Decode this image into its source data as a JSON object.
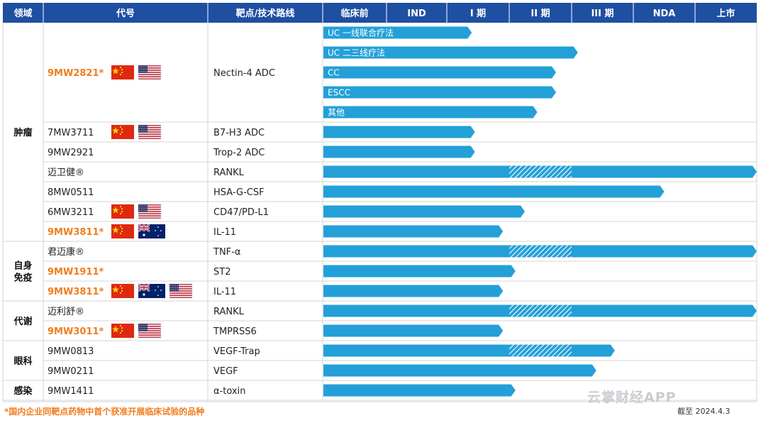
{
  "header": {
    "area": "领域",
    "code": "代号",
    "target": "靶点/技术路线",
    "phases": [
      "临床前",
      "IND",
      "I 期",
      "II 期",
      "III 期",
      "NDA",
      "上市"
    ]
  },
  "areas": [
    {
      "label": "肿瘤",
      "lines": [
        "肿瘤"
      ]
    },
    {
      "label": "自身免疫",
      "lines": [
        "自身",
        "免疫"
      ]
    },
    {
      "label": "代谢",
      "lines": [
        "代谢"
      ]
    },
    {
      "label": "眼科",
      "lines": [
        "眼科"
      ]
    },
    {
      "label": "感染",
      "lines": [
        "感染"
      ]
    }
  ],
  "chart_data": {
    "type": "bar",
    "stage_scale": [
      "临床前",
      "IND",
      "I 期",
      "II 期",
      "III 期",
      "NDA",
      "上市"
    ],
    "note": "bar ends are expressed in stage columns (0 = start of 临床前, 7 = end of 上市); hatch ranges mark the striped segment",
    "rows": [
      {
        "area": "肿瘤",
        "code": "9MW2821*",
        "highlight": true,
        "flags": [
          "cn",
          "us"
        ],
        "target": "Nectin-4 ADC",
        "bars": [
          {
            "label": "UC 一线联合疗法",
            "end": 2.4
          },
          {
            "label": "UC 二三线疗法",
            "end": 4.1
          },
          {
            "label": "CC",
            "end": 3.75
          },
          {
            "label": "ESCC",
            "end": 3.75
          },
          {
            "label": "其他",
            "end": 3.45
          }
        ]
      },
      {
        "area": "肿瘤",
        "code": "7MW3711",
        "highlight": false,
        "flags": [
          "cn",
          "us"
        ],
        "target": "B7-H3 ADC",
        "bars": [
          {
            "label": "",
            "end": 2.45
          }
        ]
      },
      {
        "area": "肿瘤",
        "code": "9MW2921",
        "highlight": false,
        "flags": [],
        "target": "Trop-2 ADC",
        "bars": [
          {
            "label": "",
            "end": 2.45
          }
        ]
      },
      {
        "area": "肿瘤",
        "code": "迈卫健®",
        "highlight": false,
        "flags": [],
        "target": "RANKL",
        "bars": [
          {
            "label": "",
            "end": 7.0,
            "hatch": [
              3.0,
              4.0
            ]
          }
        ]
      },
      {
        "area": "肿瘤",
        "code": "8MW0511",
        "highlight": false,
        "flags": [],
        "target": "HSA-G-CSF",
        "bars": [
          {
            "label": "",
            "end": 5.5
          }
        ]
      },
      {
        "area": "肿瘤",
        "code": "6MW3211",
        "highlight": false,
        "flags": [
          "cn",
          "us"
        ],
        "target": "CD47/PD-L1",
        "bars": [
          {
            "label": "",
            "end": 3.25
          }
        ]
      },
      {
        "area": "肿瘤",
        "code": "9MW3811*",
        "highlight": true,
        "flags": [
          "cn",
          "au"
        ],
        "target": "IL-11",
        "bars": [
          {
            "label": "",
            "end": 2.9
          }
        ]
      },
      {
        "area": "自身免疫",
        "code": "君迈康®",
        "highlight": false,
        "flags": [],
        "target": "TNF-α",
        "bars": [
          {
            "label": "",
            "end": 7.0,
            "hatch": [
              3.0,
              4.0
            ]
          }
        ]
      },
      {
        "area": "自身免疫",
        "code": "9MW1911*",
        "highlight": true,
        "flags": [],
        "target": "ST2",
        "bars": [
          {
            "label": "",
            "end": 3.1
          }
        ]
      },
      {
        "area": "自身免疫",
        "code": "9MW3811*",
        "highlight": true,
        "flags": [
          "cn",
          "au",
          "us"
        ],
        "target": "IL-11",
        "bars": [
          {
            "label": "",
            "end": 2.9
          }
        ]
      },
      {
        "area": "代谢",
        "code": "迈利舒®",
        "highlight": false,
        "flags": [],
        "target": "RANKL",
        "bars": [
          {
            "label": "",
            "end": 7.0,
            "hatch": [
              3.0,
              4.0
            ]
          }
        ]
      },
      {
        "area": "代谢",
        "code": "9MW3011*",
        "highlight": true,
        "flags": [
          "cn",
          "us"
        ],
        "target": "TMPRSS6",
        "bars": [
          {
            "label": "",
            "end": 2.9
          }
        ]
      },
      {
        "area": "眼科",
        "code": "9MW0813",
        "highlight": false,
        "flags": [],
        "target": "VEGF-Trap",
        "bars": [
          {
            "label": "",
            "end": 4.7,
            "hatch": [
              3.0,
              4.0
            ]
          }
        ]
      },
      {
        "area": "眼科",
        "code": "9MW0211",
        "highlight": false,
        "flags": [],
        "target": "VEGF",
        "bars": [
          {
            "label": "",
            "end": 4.4
          }
        ]
      },
      {
        "area": "感染",
        "code": "9MW1411",
        "highlight": false,
        "flags": [],
        "target": "α-toxin",
        "bars": [
          {
            "label": "",
            "end": 3.1
          }
        ]
      }
    ]
  },
  "colors": {
    "header_bg": "#1f4fa0",
    "bar": "#23a0d8",
    "hatch": "#ffffff",
    "highlight_text": "#f07d1e"
  },
  "footer": {
    "footnote": "*国内企业同靶点药物中首个获准开展临床试验的品种",
    "as_of": "截至 2024.4.3",
    "watermark": "云掌财经APP"
  }
}
